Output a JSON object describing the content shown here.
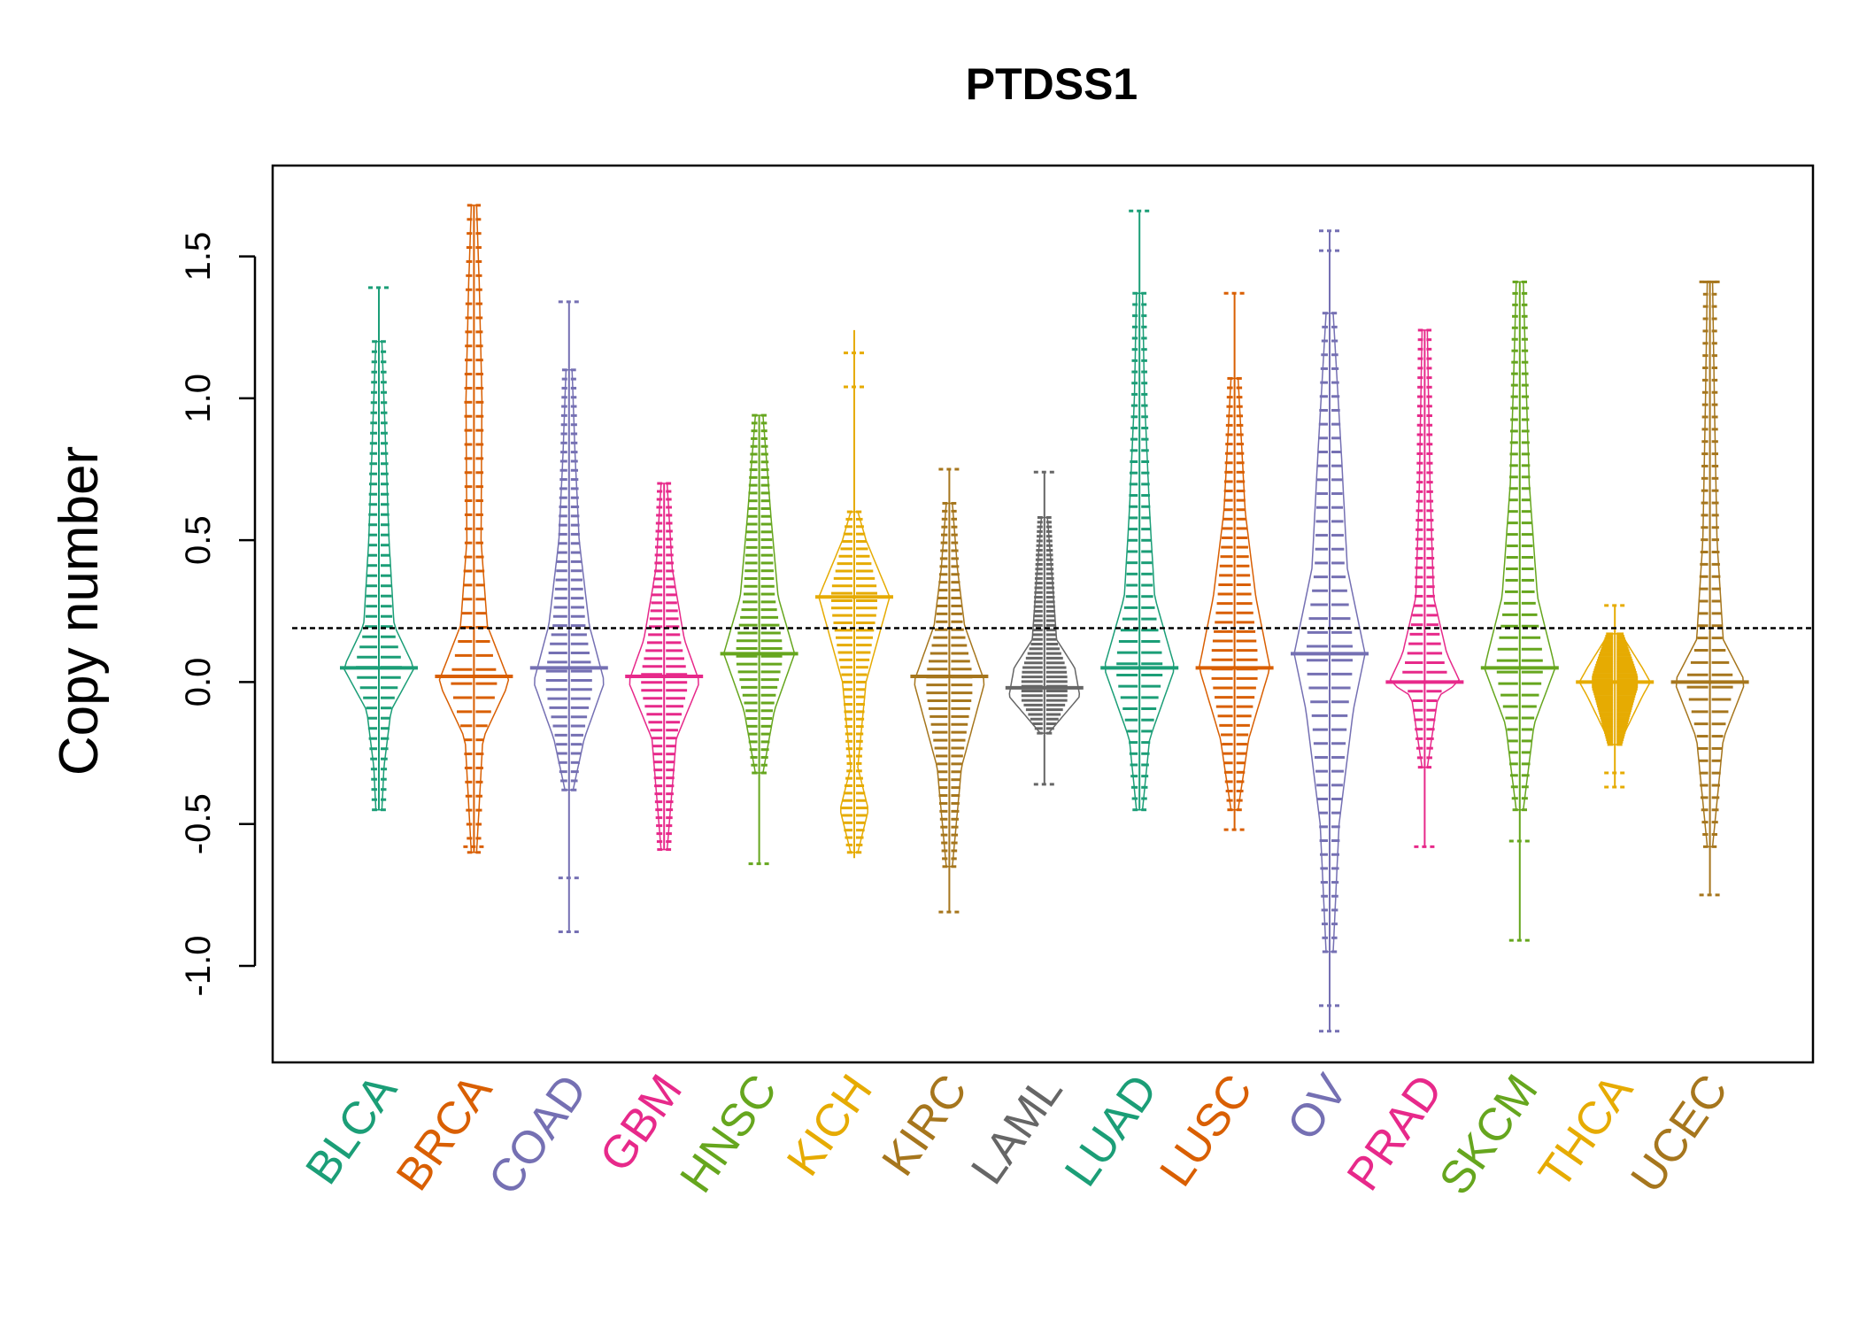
{
  "chart_data": {
    "type": "beanplot",
    "title": "PTDSS1",
    "xlabel": "",
    "ylabel": "Copy number",
    "ylim": [
      -1.34,
      1.82
    ],
    "yticks": [
      -1.0,
      -0.5,
      0.0,
      0.5,
      1.0,
      1.5
    ],
    "ytick_labels": [
      "-1.0",
      "-0.5",
      "0.0",
      "0.5",
      "1.0",
      "1.5"
    ],
    "reference_line": 0.19,
    "categories": [
      "BLCA",
      "BRCA",
      "COAD",
      "GBM",
      "HNSC",
      "KICH",
      "KIRC",
      "LAML",
      "LUAD",
      "LUSC",
      "OV",
      "PRAD",
      "SKCM",
      "THCA",
      "UCEC"
    ],
    "colors": [
      "#1B9E77",
      "#D95F02",
      "#7570B3",
      "#E7298A",
      "#66A61E",
      "#E6AB02",
      "#A6761D",
      "#666666",
      "#1B9E77",
      "#D95F02",
      "#7570B3",
      "#E7298A",
      "#66A61E",
      "#E6AB02",
      "#A6761D"
    ],
    "series": [
      {
        "category": "BLCA",
        "min": -0.45,
        "max": 1.39,
        "median": 0.05,
        "outliers": [
          1.39
        ],
        "density": [
          [
            -0.45,
            0.3
          ],
          [
            -0.3,
            0.5
          ],
          [
            -0.1,
            1.2
          ],
          [
            0.05,
            3.5
          ],
          [
            0.2,
            1.5
          ],
          [
            0.5,
            1.0
          ],
          [
            0.8,
            0.7
          ],
          [
            1.2,
            0.3
          ]
        ]
      },
      {
        "category": "BRCA",
        "min": -0.6,
        "max": 1.68,
        "median": 0.02,
        "outliers": [
          -0.58
        ],
        "density": [
          [
            -0.6,
            0.3
          ],
          [
            -0.2,
            1.0
          ],
          [
            0.0,
            4.0
          ],
          [
            0.2,
            1.5
          ],
          [
            0.5,
            0.8
          ],
          [
            1.0,
            0.9
          ],
          [
            1.4,
            0.6
          ],
          [
            1.68,
            0.3
          ]
        ]
      },
      {
        "category": "COAD",
        "min": -0.88,
        "max": 1.34,
        "median": 0.05,
        "outliers": [
          -0.69,
          -0.88,
          1.34
        ],
        "density": [
          [
            -0.38,
            0.4
          ],
          [
            -0.2,
            1.5
          ],
          [
            0.0,
            3.5
          ],
          [
            0.2,
            2.0
          ],
          [
            0.5,
            1.0
          ],
          [
            0.8,
            0.6
          ],
          [
            1.1,
            0.3
          ]
        ]
      },
      {
        "category": "GBM",
        "min": -0.59,
        "max": 0.7,
        "median": 0.02,
        "outliers": [],
        "density": [
          [
            -0.59,
            0.3
          ],
          [
            -0.2,
            1.2
          ],
          [
            0.0,
            3.5
          ],
          [
            0.15,
            2.0
          ],
          [
            0.4,
            0.8
          ],
          [
            0.7,
            0.3
          ]
        ]
      },
      {
        "category": "HNSC",
        "min": -0.64,
        "max": 0.94,
        "median": 0.1,
        "outliers": [
          -0.64
        ],
        "density": [
          [
            -0.32,
            0.3
          ],
          [
            -0.1,
            1.2
          ],
          [
            0.1,
            2.8
          ],
          [
            0.3,
            1.5
          ],
          [
            0.6,
            0.9
          ],
          [
            0.94,
            0.3
          ]
        ]
      },
      {
        "category": "KICH",
        "min": -0.62,
        "max": 1.24,
        "median": 0.3,
        "outliers": [
          1.16,
          1.04
        ],
        "density": [
          [
            -0.6,
            0.3
          ],
          [
            -0.45,
            1.2
          ],
          [
            -0.3,
            0.3
          ],
          [
            0.0,
            1.0
          ],
          [
            0.3,
            3.0
          ],
          [
            0.5,
            1.0
          ],
          [
            0.6,
            0.3
          ]
        ]
      },
      {
        "category": "KIRC",
        "min": -0.81,
        "max": 0.75,
        "median": 0.02,
        "outliers": [
          -0.81,
          0.75
        ],
        "density": [
          [
            -0.65,
            0.3
          ],
          [
            -0.3,
            1.2
          ],
          [
            0.0,
            3.5
          ],
          [
            0.2,
            1.5
          ],
          [
            0.4,
            0.8
          ],
          [
            0.63,
            0.3
          ]
        ]
      },
      {
        "category": "LAML",
        "min": -0.36,
        "max": 0.74,
        "median": -0.02,
        "outliers": [
          -0.36,
          0.74
        ],
        "density": [
          [
            -0.18,
            0.4
          ],
          [
            -0.05,
            3.5
          ],
          [
            0.05,
            3.0
          ],
          [
            0.15,
            1.2
          ],
          [
            0.35,
            0.8
          ],
          [
            0.58,
            0.3
          ]
        ]
      },
      {
        "category": "LUAD",
        "min": -0.45,
        "max": 1.66,
        "median": 0.05,
        "outliers": [
          1.66
        ],
        "density": [
          [
            -0.45,
            0.3
          ],
          [
            -0.2,
            1.0
          ],
          [
            0.05,
            3.5
          ],
          [
            0.3,
            1.5
          ],
          [
            0.6,
            1.0
          ],
          [
            1.0,
            0.5
          ],
          [
            1.37,
            0.3
          ]
        ]
      },
      {
        "category": "LUSC",
        "min": -0.52,
        "max": 1.37,
        "median": 0.05,
        "outliers": [
          1.37,
          -0.52
        ],
        "density": [
          [
            -0.45,
            0.3
          ],
          [
            -0.2,
            1.2
          ],
          [
            0.05,
            3.0
          ],
          [
            0.3,
            1.8
          ],
          [
            0.6,
            0.9
          ],
          [
            1.07,
            0.3
          ]
        ]
      },
      {
        "category": "OV",
        "min": -1.23,
        "max": 1.59,
        "median": 0.1,
        "outliers": [
          -1.14,
          -1.23,
          1.52,
          1.59
        ],
        "density": [
          [
            -0.95,
            0.3
          ],
          [
            -0.5,
            0.8
          ],
          [
            -0.1,
            2.0
          ],
          [
            0.1,
            3.0
          ],
          [
            0.4,
            1.5
          ],
          [
            0.8,
            1.0
          ],
          [
            1.3,
            0.3
          ]
        ]
      },
      {
        "category": "PRAD",
        "min": -0.58,
        "max": 1.24,
        "median": 0.0,
        "outliers": [
          -0.58
        ],
        "density": [
          [
            -0.3,
            0.3
          ],
          [
            -0.05,
            1.5
          ],
          [
            0.0,
            4.0
          ],
          [
            0.1,
            2.5
          ],
          [
            0.3,
            1.0
          ],
          [
            0.7,
            0.6
          ],
          [
            1.24,
            0.3
          ]
        ]
      },
      {
        "category": "SKCM",
        "min": -0.91,
        "max": 1.41,
        "median": 0.05,
        "outliers": [
          -0.91,
          -0.56
        ],
        "density": [
          [
            -0.45,
            0.3
          ],
          [
            -0.15,
            1.2
          ],
          [
            0.05,
            3.0
          ],
          [
            0.3,
            1.5
          ],
          [
            0.7,
            0.8
          ],
          [
            1.1,
            0.5
          ],
          [
            1.41,
            0.3
          ]
        ]
      },
      {
        "category": "THCA",
        "min": -0.37,
        "max": 0.27,
        "median": 0.0,
        "outliers": [
          -0.32,
          -0.37,
          0.27
        ],
        "density": [
          [
            -0.22,
            0.5
          ],
          [
            -0.05,
            3.5
          ],
          [
            0.0,
            4.5
          ],
          [
            0.05,
            3.5
          ],
          [
            0.17,
            0.8
          ]
        ]
      },
      {
        "category": "UCEC",
        "min": -0.75,
        "max": 1.41,
        "median": 0.0,
        "outliers": [
          -0.75,
          1.41
        ],
        "density": [
          [
            -0.58,
            0.3
          ],
          [
            -0.2,
            1.5
          ],
          [
            0.0,
            4.0
          ],
          [
            0.15,
            1.5
          ],
          [
            0.5,
            0.8
          ],
          [
            1.0,
            0.5
          ],
          [
            1.41,
            0.3
          ]
        ]
      }
    ]
  }
}
